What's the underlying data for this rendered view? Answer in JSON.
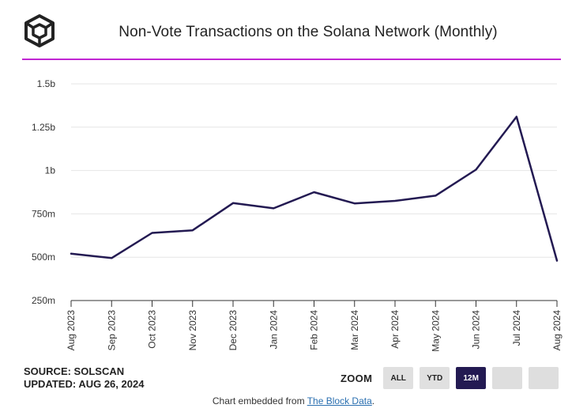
{
  "header": {
    "title": "Non-Vote Transactions on the Solana Network (Monthly)",
    "rule_color": "#c026d3"
  },
  "chart_data": {
    "type": "line",
    "title": "Non-Vote Transactions on the Solana Network (Monthly)",
    "xlabel": "",
    "ylabel": "",
    "categories": [
      "Aug 2023",
      "Sep 2023",
      "Oct 2023",
      "Nov 2023",
      "Dec 2023",
      "Jan 2024",
      "Feb 2024",
      "Mar 2024",
      "Apr 2024",
      "May 2024",
      "Jun 2024",
      "Jul 2024",
      "Aug 2024"
    ],
    "series": [
      {
        "name": "Non-Vote Transactions",
        "color": "#231a52",
        "values": [
          520000000,
          495000000,
          640000000,
          655000000,
          812000000,
          782000000,
          875000000,
          810000000,
          825000000,
          855000000,
          1005000000,
          1310000000,
          480000000
        ]
      }
    ],
    "ylim": [
      250000000,
      1500000000
    ],
    "yticks": [
      250000000,
      500000000,
      750000000,
      1000000000,
      1250000000,
      1500000000
    ],
    "ytick_labels": [
      "250m",
      "500m",
      "750m",
      "1b",
      "1.25b",
      "1.5b"
    ],
    "grid": true,
    "legend": "none"
  },
  "footer": {
    "source": "SOURCE: SOLSCAN",
    "updated": "UPDATED: AUG 26, 2024",
    "embed_prefix": "Chart embedded from ",
    "embed_link": "The Block Data",
    "embed_suffix": "."
  },
  "zoom": {
    "label": "ZOOM",
    "buttons": [
      {
        "label": "ALL",
        "active": false
      },
      {
        "label": "YTD",
        "active": false
      },
      {
        "label": "12M",
        "active": true
      },
      {
        "label": "",
        "active": false
      },
      {
        "label": "",
        "active": false
      }
    ]
  }
}
